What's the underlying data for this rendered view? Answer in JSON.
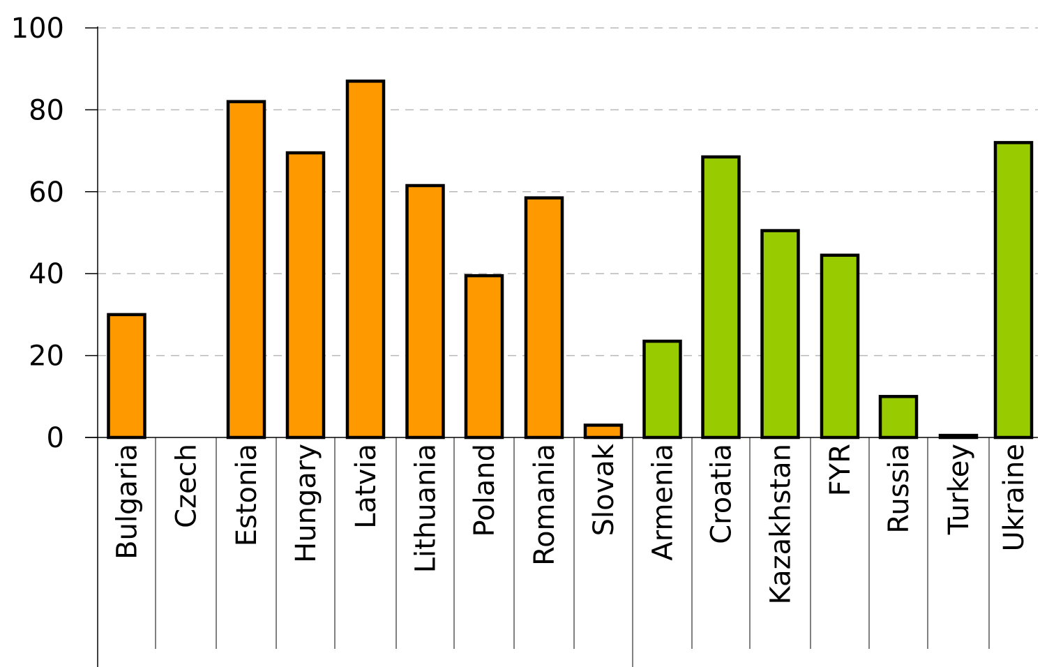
{
  "chart_data": {
    "type": "bar",
    "categories": [
      "Bulgaria",
      "Czech",
      "Estonia",
      "Hungary",
      "Latvia",
      "Lithuania",
      "Poland",
      "Romania",
      "Slovak",
      "Armenia",
      "Croatia",
      "Kazakhstan",
      "FYR",
      "Russia",
      "Turkey",
      "Ukraine"
    ],
    "values": [
      30,
      0,
      82,
      69.5,
      87,
      61.5,
      39.5,
      58.5,
      3,
      23.5,
      68.5,
      50.5,
      44.5,
      10,
      0.5,
      72
    ],
    "groups": [
      {
        "members": [
          "Bulgaria",
          "Czech",
          "Estonia",
          "Hungary",
          "Latvia",
          "Lithuania",
          "Poland",
          "Romania",
          "Slovak"
        ],
        "color": "#ff9900"
      },
      {
        "members": [
          "Armenia",
          "Croatia",
          "Kazakhstan",
          "FYR",
          "Russia",
          "Turkey",
          "Ukraine"
        ],
        "color": "#99cc00"
      }
    ],
    "yticks": [
      0,
      20,
      40,
      60,
      80,
      100
    ],
    "ylim": [
      0,
      100
    ],
    "grid": true,
    "title": "",
    "xlabel": "",
    "ylabel": ""
  }
}
